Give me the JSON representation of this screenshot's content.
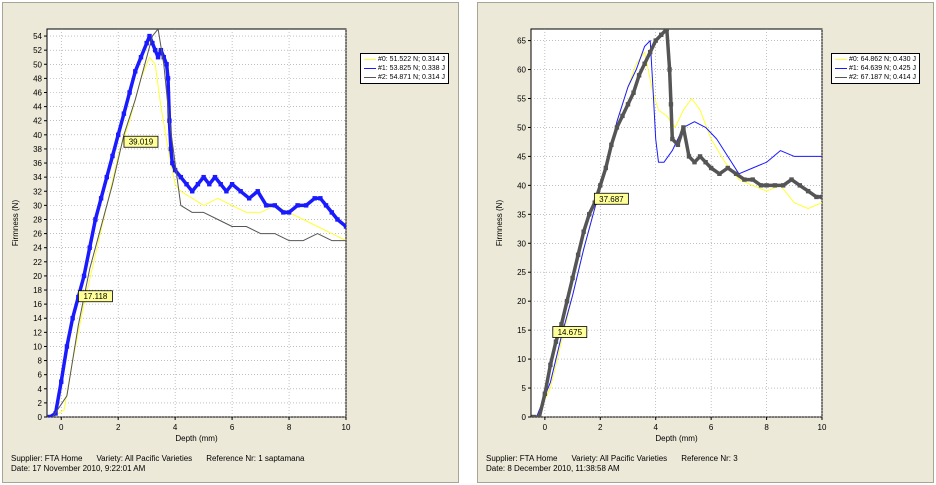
{
  "colors": {
    "panel_bg": "#ece9d8",
    "series0": "#ffff33",
    "series1": "#1a1aff",
    "series2": "#555555",
    "callout_bg": "#ffff99"
  },
  "chart_data": [
    {
      "type": "line",
      "xlabel": "Depth (mm)",
      "ylabel": "Firmness (N)",
      "xlim": [
        -0.5,
        10
      ],
      "ylim": [
        0,
        55
      ],
      "x_ticks": [
        0,
        2,
        4,
        6,
        8,
        10
      ],
      "y_ticks": [
        0,
        2,
        4,
        6,
        8,
        10,
        12,
        14,
        16,
        18,
        20,
        22,
        24,
        26,
        28,
        30,
        32,
        34,
        36,
        38,
        40,
        42,
        44,
        46,
        48,
        50,
        52,
        54
      ],
      "grid": true,
      "legend_position": "top-right outside",
      "series": [
        {
          "name": "#0: 51.522 N; 0.314 J",
          "style": "thin",
          "x": [
            -0.3,
            0.1,
            0.4,
            0.8,
            1.2,
            1.6,
            2.0,
            2.4,
            2.8,
            3.1,
            3.3,
            3.5,
            3.8,
            4.0,
            4.2,
            4.6,
            5.0,
            5.5,
            6.0,
            6.5,
            7.0,
            7.5,
            8.0,
            8.5,
            9.0,
            9.5,
            10.0
          ],
          "y": [
            0,
            1,
            8,
            16,
            23,
            30,
            37,
            42,
            48,
            51,
            50,
            44,
            37,
            33,
            32,
            31,
            30,
            31,
            30,
            29,
            29,
            30,
            29,
            28,
            27,
            26,
            25
          ]
        },
        {
          "name": "#1: 53.825 N; 0.338 J",
          "style": "bold-markers",
          "x": [
            -0.4,
            -0.2,
            0.0,
            0.2,
            0.4,
            0.6,
            0.8,
            1.0,
            1.2,
            1.4,
            1.6,
            1.8,
            2.0,
            2.2,
            2.4,
            2.6,
            2.8,
            3.0,
            3.1,
            3.2,
            3.3,
            3.4,
            3.5,
            3.6,
            3.7,
            3.75,
            3.8,
            3.85,
            3.9,
            4.0,
            4.2,
            4.4,
            4.6,
            4.8,
            5.0,
            5.2,
            5.4,
            5.6,
            5.8,
            6.0,
            6.3,
            6.6,
            6.9,
            7.2,
            7.5,
            7.8,
            8.0,
            8.3,
            8.6,
            8.9,
            9.1,
            9.3,
            9.5,
            9.7,
            10.0
          ],
          "y": [
            0,
            0.5,
            5,
            10,
            14,
            17,
            20,
            24,
            28,
            31,
            34,
            37,
            40,
            43,
            46,
            49,
            51,
            53,
            54,
            53,
            52,
            51,
            52,
            51,
            50,
            48,
            42,
            38,
            36,
            35,
            34,
            33,
            32,
            33,
            34,
            33,
            34,
            33,
            32,
            33,
            32,
            31,
            32,
            30,
            30,
            29,
            29,
            30,
            30,
            31,
            31,
            30,
            29,
            28,
            27
          ]
        },
        {
          "name": "#2: 54.871 N; 0.314 J",
          "style": "thin",
          "x": [
            -0.3,
            0.2,
            0.6,
            1.0,
            1.4,
            1.8,
            2.2,
            2.6,
            3.0,
            3.2,
            3.4,
            3.6,
            3.8,
            4.0,
            4.2,
            4.6,
            5.0,
            5.5,
            6.0,
            6.5,
            7.0,
            7.5,
            8.0,
            8.5,
            9.0,
            9.5,
            10.0
          ],
          "y": [
            0,
            3,
            13,
            21,
            27,
            33,
            40,
            45,
            51,
            54,
            55,
            50,
            42,
            36,
            30,
            29,
            29,
            28,
            27,
            27,
            26,
            26,
            25,
            25,
            26,
            25,
            25
          ]
        }
      ],
      "callouts": [
        {
          "label": "39.019",
          "x": 2.8,
          "y": 39.019
        },
        {
          "label": "17.118",
          "x": 1.2,
          "y": 17.118
        }
      ],
      "footer": {
        "line1": [
          "Supplier: FTA Home",
          "Variety: All Pacific Varieties",
          "Reference Nr: 1 saptamana"
        ],
        "line2": "Date: 17 November 2010, 9:22:01 AM"
      }
    },
    {
      "type": "line",
      "xlabel": "Depth (mm)",
      "ylabel": "Firmness (N)",
      "xlim": [
        -0.5,
        10
      ],
      "ylim": [
        0,
        67
      ],
      "x_ticks": [
        0,
        2,
        4,
        6,
        8,
        10
      ],
      "y_ticks": [
        0,
        5,
        10,
        15,
        20,
        25,
        30,
        35,
        40,
        45,
        50,
        55,
        60,
        65
      ],
      "grid": true,
      "legend_position": "top-right outside",
      "series": [
        {
          "name": "#0: 64.862 N; 0.430 J",
          "style": "thin",
          "x": [
            -0.3,
            0.2,
            0.6,
            1.0,
            1.4,
            1.8,
            2.2,
            2.6,
            3.0,
            3.3,
            3.6,
            3.9,
            4.1,
            4.4,
            4.7,
            5.0,
            5.3,
            5.6,
            6.0,
            6.5,
            7.0,
            7.5,
            8.0,
            8.5,
            9.0,
            9.5,
            10.0
          ],
          "y": [
            0,
            5,
            13,
            21,
            29,
            36,
            43,
            51,
            57,
            61,
            63,
            56,
            53,
            52,
            50,
            53,
            55,
            53,
            48,
            44,
            41,
            40,
            39,
            40,
            37,
            36,
            37
          ]
        },
        {
          "name": "#1: 64.639 N; 0.425 J",
          "style": "thin",
          "x": [
            -0.3,
            0.2,
            0.6,
            1.0,
            1.4,
            1.8,
            2.2,
            2.6,
            3.0,
            3.3,
            3.6,
            3.8,
            3.9,
            4.0,
            4.1,
            4.3,
            4.6,
            5.0,
            5.4,
            5.8,
            6.2,
            6.6,
            7.0,
            7.5,
            8.0,
            8.5,
            9.0,
            9.5,
            10.0
          ],
          "y": [
            0,
            6,
            14,
            21,
            29,
            36,
            43,
            51,
            57,
            60,
            64,
            65,
            57,
            48,
            44,
            44,
            46,
            50,
            51,
            50,
            48,
            45,
            42,
            43,
            44,
            46,
            45,
            45,
            45
          ]
        },
        {
          "name": "#2: 67.187 N; 0.414 J",
          "style": "bold-markers",
          "x": [
            -0.4,
            -0.2,
            0.0,
            0.2,
            0.4,
            0.6,
            0.8,
            1.0,
            1.2,
            1.4,
            1.6,
            1.8,
            2.0,
            2.2,
            2.4,
            2.6,
            2.8,
            3.0,
            3.2,
            3.4,
            3.6,
            3.8,
            4.0,
            4.2,
            4.4,
            4.5,
            4.55,
            4.6,
            4.8,
            5.0,
            5.2,
            5.4,
            5.6,
            5.8,
            6.0,
            6.3,
            6.6,
            6.9,
            7.2,
            7.5,
            7.8,
            8.0,
            8.3,
            8.6,
            8.9,
            9.2,
            9.5,
            9.8,
            10.0
          ],
          "y": [
            0,
            0,
            4,
            9,
            13,
            16,
            20,
            24,
            28,
            32,
            35,
            37,
            40,
            43,
            47,
            50,
            52,
            54,
            56,
            59,
            61,
            63,
            65,
            66,
            67,
            60,
            54,
            48,
            47,
            50,
            45,
            44,
            45,
            44,
            43,
            42,
            43,
            42,
            41,
            41,
            40,
            40,
            40,
            40,
            41,
            40,
            39,
            38,
            38
          ]
        }
      ],
      "callouts": [
        {
          "label": "37.687",
          "x": 2.4,
          "y": 37.687
        },
        {
          "label": "14.675",
          "x": 0.9,
          "y": 14.675
        }
      ],
      "footer": {
        "line1": [
          "Supplier: FTA Home",
          "Variety: All Pacific Varieties",
          "Reference Nr: 3"
        ],
        "line2": "Date: 8 December 2010, 11:38:58 AM"
      }
    }
  ]
}
